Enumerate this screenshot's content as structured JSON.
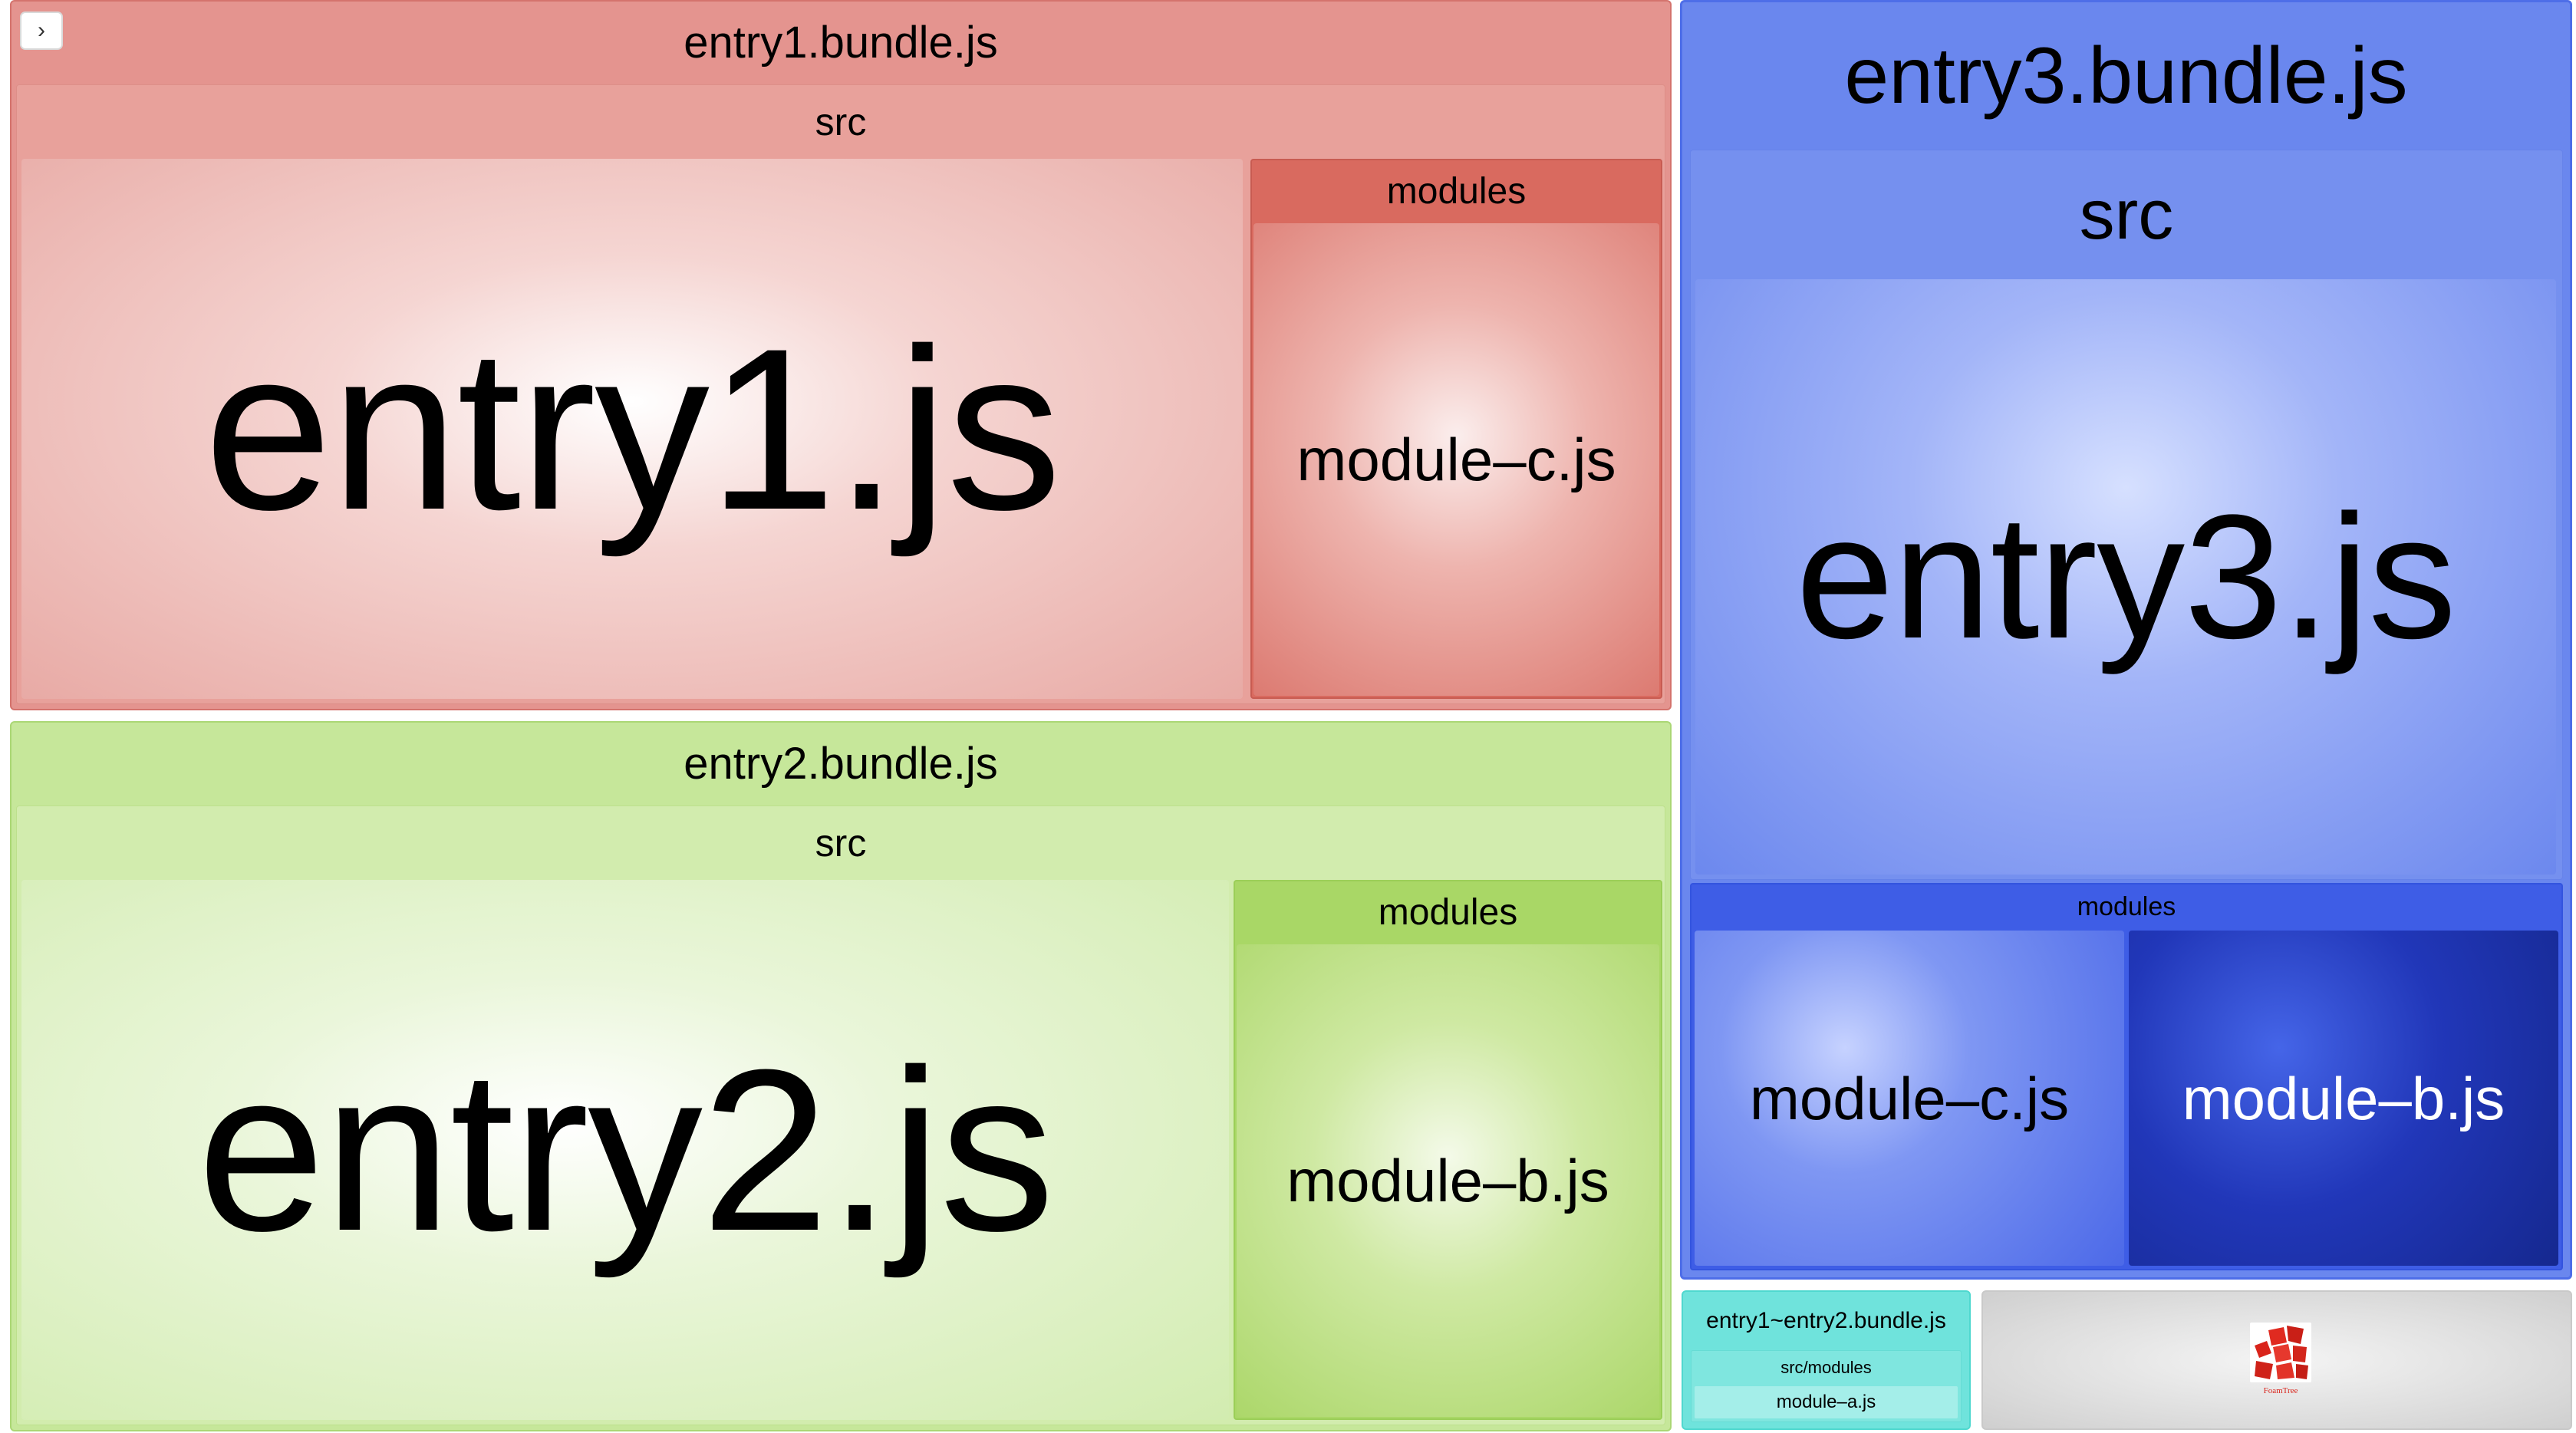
{
  "sidebar_toggle": {
    "icon": "chevron-right-icon",
    "glyph": "›"
  },
  "colors": {
    "entry1": "#e4948f",
    "entry2": "#c6e79a",
    "entry3": "#6a87ee",
    "shared": "#6fe3dc",
    "foamtree": "#dedede"
  },
  "treemap": {
    "entry1": {
      "bundle": "entry1.bundle.js",
      "folder": "src",
      "main_file": "entry1.js",
      "subfolder": "modules",
      "module": "module–c.js"
    },
    "entry2": {
      "bundle": "entry2.bundle.js",
      "folder": "src",
      "main_file": "entry2.js",
      "subfolder": "modules",
      "module": "module–b.js"
    },
    "entry3": {
      "bundle": "entry3.bundle.js",
      "folder": "src",
      "main_file": "entry3.js",
      "subfolder": "modules",
      "module_c": "module–c.js",
      "module_b": "module–b.js"
    },
    "shared": {
      "bundle": "entry1~entry2.bundle.js",
      "folder": "src/modules",
      "module": "module–a.js"
    }
  },
  "foamtree_logo": {
    "icon": "foamtree-logo-icon",
    "text": "FoamTree"
  }
}
